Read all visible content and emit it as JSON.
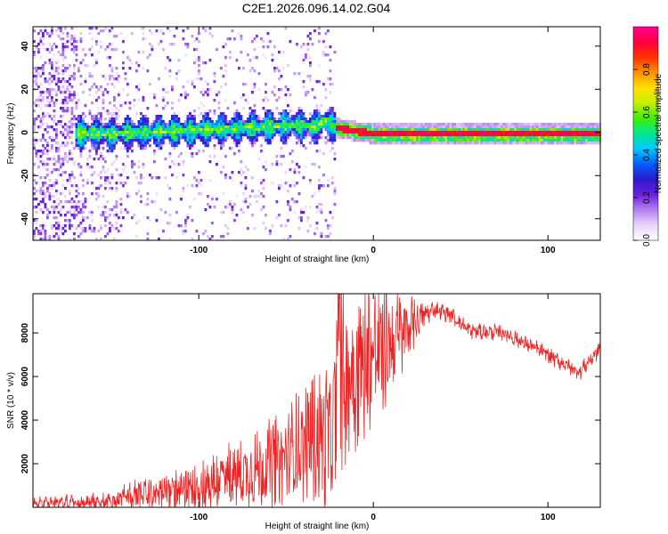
{
  "title": "C2E1.2026.096.14.02.G04",
  "chart_data": [
    {
      "type": "heatmap",
      "id": "spectrogram",
      "xlabel": "Height of straight line (km)",
      "ylabel": "Frequency (Hz)",
      "xlim": [
        -195,
        130
      ],
      "ylim": [
        -50,
        49
      ],
      "xticks": [
        -100,
        0,
        100
      ],
      "xtick_labels": [
        "-100",
        "0",
        "100"
      ],
      "yticks": [
        -40,
        -20,
        0,
        20,
        40
      ],
      "ytick_labels": [
        "-40",
        "-20",
        "0",
        "20",
        "40"
      ],
      "colorbar": {
        "label": "Normalized spectral amplitude",
        "range": [
          0.0,
          1.0
        ],
        "ticks": [
          0.0,
          0.2,
          0.4,
          0.6,
          0.8
        ],
        "tick_labels": [
          "0.0",
          "0.2",
          "0.4",
          "0.6",
          "0.8"
        ],
        "colormap": [
          "#ffffff",
          "#e8d4fa",
          "#b480f2",
          "#6a1ee0",
          "#2a1acc",
          "#0060ff",
          "#00c8ff",
          "#00e890",
          "#40f000",
          "#c8f000",
          "#ffe000",
          "#ff9000",
          "#ff3000",
          "#ff0040",
          "#ff0090"
        ]
      },
      "band_center": [
        {
          "x": -175,
          "f": 0
        },
        {
          "x": -150,
          "f": 0
        },
        {
          "x": -120,
          "f": 1
        },
        {
          "x": -90,
          "f": 2
        },
        {
          "x": -60,
          "f": 3
        },
        {
          "x": -45,
          "f": 4
        },
        {
          "x": -35,
          "f": 3
        },
        {
          "x": -28,
          "f": 6
        },
        {
          "x": -24,
          "f": 3
        },
        {
          "x": -10,
          "f": 1
        },
        {
          "x": 0,
          "f": 0
        },
        {
          "x": 130,
          "f": 0
        }
      ]
    },
    {
      "type": "line",
      "id": "snr",
      "xlabel": "Height of straight line (km)",
      "ylabel": "SNR (10 * v/v)",
      "xlim": [
        -195,
        130
      ],
      "ylim": [
        0,
        9800
      ],
      "xticks": [
        -100,
        0,
        100
      ],
      "xtick_labels": [
        "-100",
        "0",
        "100"
      ],
      "yticks": [
        2000,
        4000,
        6000,
        8000
      ],
      "ytick_labels": [
        "2000",
        "4000",
        "6000",
        "8000"
      ],
      "line_color": "#ee2222",
      "envelope": [
        {
          "x": -195,
          "base": 200,
          "amp": 150
        },
        {
          "x": -150,
          "base": 250,
          "amp": 250
        },
        {
          "x": -140,
          "base": 500,
          "amp": 450
        },
        {
          "x": -110,
          "base": 800,
          "amp": 700
        },
        {
          "x": -90,
          "base": 1200,
          "amp": 1100
        },
        {
          "x": -70,
          "base": 1700,
          "amp": 1300
        },
        {
          "x": -50,
          "base": 2300,
          "amp": 1600
        },
        {
          "x": -35,
          "base": 3300,
          "amp": 2200
        },
        {
          "x": -24,
          "base": 3200,
          "amp": 2600
        },
        {
          "x": -20,
          "base": 5000,
          "amp": 3400
        },
        {
          "x": -15,
          "base": 6200,
          "amp": 3000
        },
        {
          "x": -5,
          "base": 6800,
          "amp": 2700
        },
        {
          "x": 5,
          "base": 7200,
          "amp": 2300
        },
        {
          "x": 15,
          "base": 7800,
          "amp": 1600
        },
        {
          "x": 25,
          "base": 8600,
          "amp": 700
        },
        {
          "x": 35,
          "base": 9100,
          "amp": 300
        },
        {
          "x": 45,
          "base": 8800,
          "amp": 300
        },
        {
          "x": 55,
          "base": 8100,
          "amp": 300
        },
        {
          "x": 75,
          "base": 8000,
          "amp": 300
        },
        {
          "x": 95,
          "base": 7200,
          "amp": 300
        },
        {
          "x": 118,
          "base": 6200,
          "amp": 300
        },
        {
          "x": 130,
          "base": 7300,
          "amp": 300
        }
      ]
    }
  ]
}
